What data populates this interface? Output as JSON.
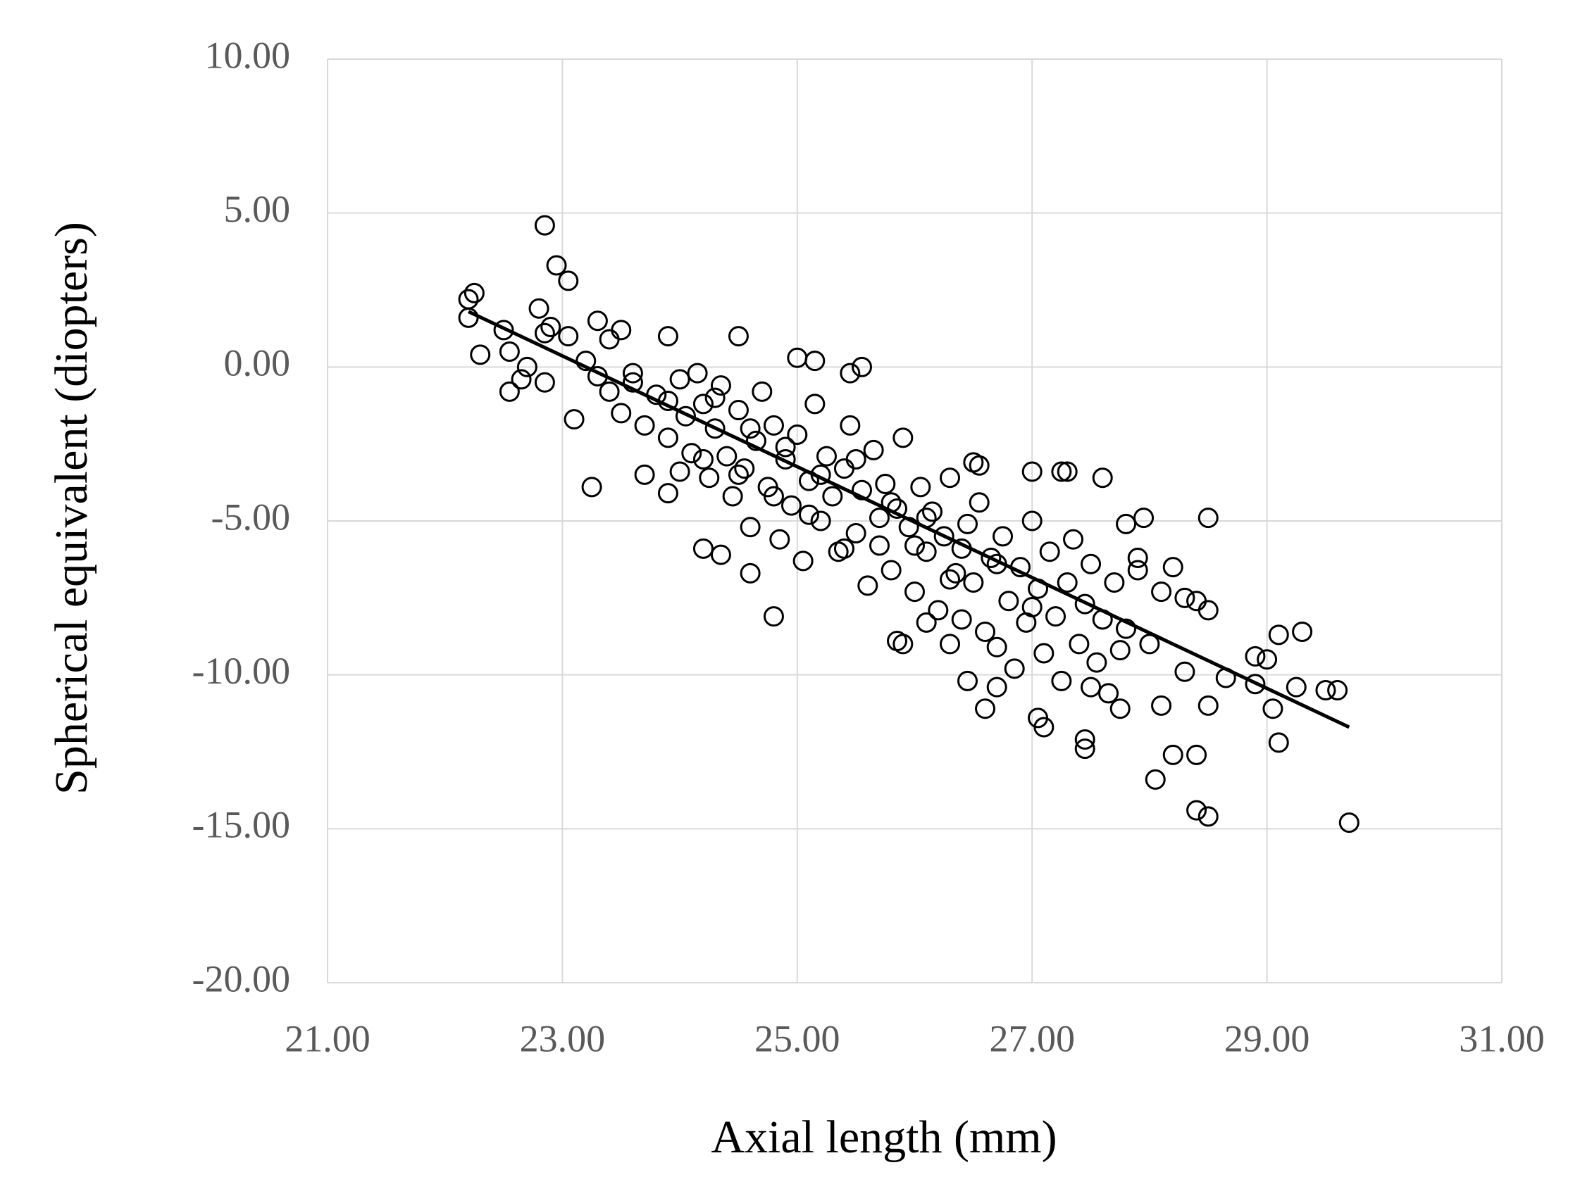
{
  "chart_data": {
    "type": "scatter",
    "x_label": "Axial length (mm)",
    "y_label": "Spherical equivalent  (diopters)",
    "color": "#000000",
    "grid": true,
    "xlim": [
      21,
      31
    ],
    "ylim": [
      -20,
      10
    ],
    "xticks": [
      {
        "value": 21,
        "label": "21.00"
      },
      {
        "value": 23,
        "label": "23.00"
      },
      {
        "value": 25,
        "label": "25.00"
      },
      {
        "value": 27,
        "label": "27.00"
      },
      {
        "value": 29,
        "label": "29.00"
      },
      {
        "value": 31,
        "label": "31.00"
      }
    ],
    "yticks": [
      {
        "value": -20,
        "label": "-20.00"
      },
      {
        "value": -15,
        "label": "-15.00"
      },
      {
        "value": -10,
        "label": "-10.00"
      },
      {
        "value": -5,
        "label": "-5.00"
      },
      {
        "value": 0,
        "label": "0.00"
      },
      {
        "value": 5,
        "label": "5.00"
      },
      {
        "value": 10,
        "label": "10.00"
      }
    ],
    "x": [
      22.2,
      22.25,
      22.2,
      22.3,
      22.5,
      22.55,
      22.55,
      22.65,
      22.7,
      22.8,
      22.85,
      22.85,
      22.9,
      22.95,
      23.05,
      23.05,
      22.85,
      23.1,
      23.25,
      23.3,
      23.5,
      23.4,
      23.9,
      23.7,
      23.9,
      24.0,
      24.2,
      24.35,
      24.5,
      24.6,
      24.8,
      25.0,
      25.15,
      25.55,
      25.45,
      25.85,
      25.9,
      26.1,
      26.3,
      26.5,
      26.55,
      26.45,
      26.6,
      26.7,
      27.0,
      27.25,
      27.3,
      27.6,
      27.05,
      27.1,
      27.45,
      27.45,
      27.5,
      27.75,
      27.95,
      28.05,
      28.2,
      28.1,
      28.4,
      28.5,
      28.4,
      28.5,
      28.5,
      28.65,
      28.5,
      28.9,
      29.0,
      29.05,
      29.1,
      29.1,
      29.3,
      29.25,
      29.5,
      29.6,
      29.7,
      28.9,
      28.3,
      28.4,
      27.8,
      27.9,
      23.2,
      23.3,
      23.4,
      23.5,
      23.6,
      23.7,
      23.8,
      23.9,
      24.0,
      24.05,
      24.1,
      24.15,
      24.2,
      24.25,
      24.3,
      24.35,
      24.4,
      24.45,
      24.5,
      24.55,
      24.6,
      24.65,
      24.7,
      24.75,
      24.8,
      24.85,
      24.9,
      24.95,
      25.0,
      25.05,
      25.1,
      25.15,
      25.2,
      25.25,
      25.3,
      25.35,
      25.4,
      25.45,
      25.5,
      25.55,
      25.6,
      25.65,
      25.7,
      25.75,
      25.8,
      25.85,
      25.9,
      25.95,
      26.0,
      26.05,
      26.1,
      26.15,
      26.2,
      26.25,
      26.3,
      26.35,
      26.4,
      26.45,
      26.5,
      26.55,
      26.6,
      26.65,
      26.7,
      26.75,
      26.8,
      26.85,
      26.9,
      26.95,
      27.0,
      27.05,
      27.1,
      27.15,
      27.2,
      27.25,
      27.3,
      27.35,
      27.4,
      27.45,
      27.5,
      27.55,
      27.6,
      27.65,
      27.7,
      27.75,
      27.8,
      27.9,
      28.0,
      28.1,
      28.2,
      28.3,
      24.3,
      24.6,
      24.9,
      25.2,
      25.5,
      25.8,
      26.1,
      26.4,
      26.7,
      27.0,
      23.6,
      23.9,
      24.2,
      24.5,
      24.8,
      25.1,
      25.4,
      25.7,
      26.0,
      26.3
    ],
    "values": [
      2.2,
      2.4,
      1.6,
      0.4,
      1.2,
      0.5,
      -0.8,
      -0.4,
      0,
      1.9,
      4.6,
      1.1,
      1.3,
      3.3,
      2.8,
      1.0,
      -0.5,
      -1.7,
      -3.9,
      1.5,
      1.2,
      0.9,
      1.0,
      -3.5,
      -4.1,
      -3.4,
      -5.9,
      -6.1,
      1.0,
      -6.7,
      -8.1,
      0.3,
      0.2,
      0.0,
      -0.2,
      -8.9,
      -9.0,
      -8.3,
      -9.0,
      -3.1,
      -3.2,
      -10.2,
      -11.1,
      -10.4,
      -3.4,
      -3.4,
      -3.4,
      -3.6,
      -11.4,
      -11.7,
      -12.1,
      -12.4,
      -10.4,
      -11.1,
      -4.9,
      -13.4,
      -12.6,
      -11.0,
      -14.4,
      -14.6,
      -12.6,
      -4.9,
      -7.9,
      -10.1,
      -11.0,
      -9.4,
      -9.5,
      -11.1,
      -8.7,
      -12.2,
      -8.6,
      -10.4,
      -10.5,
      -10.5,
      -14.8,
      -10.3,
      -7.5,
      -7.6,
      -5.1,
      -6.6,
      0.2,
      -0.3,
      -0.8,
      -1.5,
      -0.5,
      -1.9,
      -0.9,
      -2.3,
      -0.4,
      -1.6,
      -2.8,
      -0.2,
      -1.2,
      -3.6,
      -2.0,
      -0.6,
      -2.9,
      -4.2,
      -1.4,
      -3.3,
      -5.2,
      -2.4,
      -0.8,
      -3.9,
      -1.9,
      -5.6,
      -3.0,
      -4.5,
      -2.2,
      -6.3,
      -3.7,
      -1.2,
      -5.0,
      -2.9,
      -4.2,
      -6.0,
      -3.3,
      -1.9,
      -5.4,
      -4.0,
      -7.1,
      -2.7,
      -5.8,
      -3.8,
      -6.6,
      -4.6,
      -2.3,
      -5.2,
      -7.3,
      -3.9,
      -6.0,
      -4.7,
      -7.9,
      -5.5,
      -3.6,
      -6.7,
      -8.2,
      -5.1,
      -7.0,
      -4.4,
      -8.6,
      -6.2,
      -9.1,
      -5.5,
      -7.6,
      -9.8,
      -6.5,
      -8.3,
      -5.0,
      -7.2,
      -9.3,
      -6.0,
      -8.1,
      -10.2,
      -7.0,
      -5.6,
      -9.0,
      -7.7,
      -6.4,
      -9.6,
      -8.2,
      -10.6,
      -7.0,
      -9.2,
      -8.5,
      -6.2,
      -9.0,
      -7.3,
      -6.5,
      -9.9,
      -1.0,
      -2.0,
      -2.6,
      -3.5,
      -3.0,
      -4.4,
      -4.9,
      -5.9,
      -6.4,
      -7.8,
      -0.2,
      -1.1,
      -3.0,
      -3.5,
      -4.2,
      -4.8,
      -5.9,
      -4.9,
      -5.8,
      -6.9
    ],
    "trendline": {
      "x": [
        22.2,
        29.7
      ],
      "values": [
        1.8,
        -11.7
      ]
    }
  }
}
